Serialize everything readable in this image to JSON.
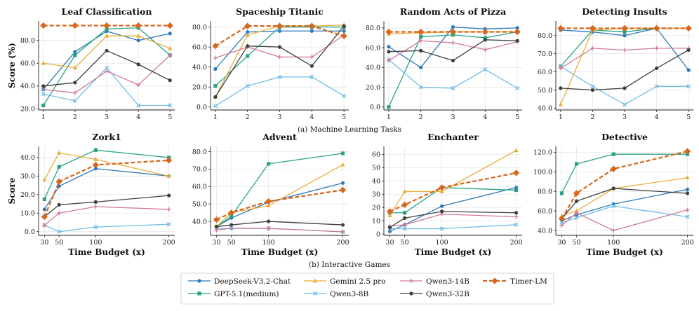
{
  "colors": {
    "DeepSeek-V3.2-Chat": "#2e7ab8",
    "GPT-5.1(medium)": "#27a383",
    "Gemini 2.5 pro": "#e9ae38",
    "Qwen3-8B": "#72bde6",
    "Qwen3-14B": "#d07a9a",
    "Qwen3-32B": "#3f3f3f",
    "Timer-LM": "#d8661c"
  },
  "legend": {
    "items": [
      "DeepSeek-V3.2-Chat",
      "GPT-5.1(medium)",
      "Gemini 2.5 pro",
      "Qwen3-8B",
      "Qwen3-14B",
      "Qwen3-32B",
      "Timer-LM"
    ]
  },
  "captions": {
    "row1": "(a) Machine Learning Tasks",
    "row2": "(b) Interactive Games"
  },
  "chart_data": [
    {
      "type": "line",
      "title": "Leaf Classification",
      "ylabel": "Score (%)",
      "xlabel": "",
      "x": [
        1,
        2,
        3,
        4,
        5
      ],
      "xlim": [
        0.85,
        5.15
      ],
      "ylim": [
        19,
        97
      ],
      "xticks": [
        1,
        2,
        3,
        4,
        5
      ],
      "yticks": [
        20.0,
        40.0,
        60.0,
        80.0
      ],
      "ydec": 1,
      "series": [
        {
          "name": "DeepSeek-V3.2-Chat",
          "values": [
            37,
            70,
            88,
            80,
            86
          ]
        },
        {
          "name": "GPT-5.1(medium)",
          "values": [
            23,
            67,
            90,
            91,
            67
          ]
        },
        {
          "name": "Gemini 2.5 pro",
          "values": [
            60,
            56,
            84,
            84,
            73
          ]
        },
        {
          "name": "Qwen3-8B",
          "values": [
            33,
            27,
            56,
            23,
            23
          ]
        },
        {
          "name": "Qwen3-14B",
          "values": [
            37,
            34,
            53,
            41,
            67
          ]
        },
        {
          "name": "Qwen3-32B",
          "values": [
            40,
            43,
            71,
            59,
            45
          ]
        },
        {
          "name": "Timer-LM",
          "values": [
            93,
            93,
            93,
            93,
            93
          ]
        }
      ]
    },
    {
      "type": "line",
      "title": "Spaceship Titanic",
      "ylabel": "",
      "xlabel": "",
      "x": [
        1,
        2,
        3,
        4,
        5
      ],
      "xlim": [
        0.85,
        5.15
      ],
      "ylim": [
        -3,
        86
      ],
      "xticks": [
        1,
        2,
        3,
        4,
        5
      ],
      "yticks": [
        0.0,
        20.0,
        40.0,
        60.0,
        80.0
      ],
      "ydec": 1,
      "series": [
        {
          "name": "DeepSeek-V3.2-Chat",
          "values": [
            38,
            75,
            76,
            76,
            76
          ]
        },
        {
          "name": "GPT-5.1(medium)",
          "values": [
            21,
            51,
            80,
            80,
            80
          ]
        },
        {
          "name": "Gemini 2.5 pro",
          "values": [
            10,
            72,
            81,
            81,
            82
          ]
        },
        {
          "name": "Qwen3-8B",
          "values": [
            1,
            21,
            30,
            30,
            11
          ]
        },
        {
          "name": "Qwen3-14B",
          "values": [
            49,
            60,
            50,
            50,
            72
          ]
        },
        {
          "name": "Qwen3-32B",
          "values": [
            10,
            61,
            60,
            41,
            81
          ]
        },
        {
          "name": "Timer-LM",
          "values": [
            61,
            81,
            81,
            81,
            71
          ]
        }
      ]
    },
    {
      "type": "line",
      "title": "Random Acts of Pizza",
      "ylabel": "",
      "xlabel": "",
      "x": [
        1,
        2,
        3,
        4,
        5
      ],
      "xlim": [
        0.85,
        5.15
      ],
      "ylim": [
        -3,
        87
      ],
      "xticks": [
        1,
        2,
        3,
        4,
        5
      ],
      "yticks": [
        0.0,
        20.0,
        40.0,
        60.0,
        80.0
      ],
      "ydec": 1,
      "series": [
        {
          "name": "DeepSeek-V3.2-Chat",
          "values": [
            61,
            40,
            81,
            79,
            80
          ]
        },
        {
          "name": "GPT-5.1(medium)",
          "values": [
            0,
            71,
            73,
            70,
            76
          ]
        },
        {
          "name": "Gemini 2.5 pro",
          "values": [
            74,
            75,
            76,
            76,
            76
          ]
        },
        {
          "name": "Qwen3-8B",
          "values": [
            48,
            20,
            19,
            38,
            19
          ]
        },
        {
          "name": "Qwen3-14B",
          "values": [
            47,
            67,
            65,
            58,
            66
          ]
        },
        {
          "name": "Qwen3-32B",
          "values": [
            56,
            57,
            47,
            68,
            67
          ]
        },
        {
          "name": "Timer-LM",
          "values": [
            76,
            76,
            76,
            76,
            76
          ]
        }
      ]
    },
    {
      "type": "line",
      "title": "Detecting Insults",
      "ylabel": "",
      "xlabel": "",
      "x": [
        1,
        2,
        3,
        4,
        5
      ],
      "xlim": [
        0.85,
        5.15
      ],
      "ylim": [
        39,
        88
      ],
      "xticks": [
        1,
        2,
        3,
        4,
        5
      ],
      "yticks": [
        40.0,
        50.0,
        60.0,
        70.0,
        80.0
      ],
      "ydec": 1,
      "series": [
        {
          "name": "DeepSeek-V3.2-Chat",
          "values": [
            83,
            82,
            80,
            84,
            61
          ]
        },
        {
          "name": "GPT-5.1(medium)",
          "values": [
            63,
            83,
            82,
            84,
            84
          ]
        },
        {
          "name": "Gemini 2.5 pro",
          "values": [
            42,
            83,
            84,
            84,
            84
          ]
        },
        {
          "name": "Qwen3-8B",
          "values": [
            63,
            52,
            42,
            52,
            52
          ]
        },
        {
          "name": "Qwen3-14B",
          "values": [
            62,
            73,
            72,
            73,
            73
          ]
        },
        {
          "name": "Qwen3-32B",
          "values": [
            51,
            50,
            51,
            62,
            72
          ]
        },
        {
          "name": "Timer-LM",
          "values": [
            84,
            84,
            84,
            84,
            84
          ]
        }
      ]
    },
    {
      "type": "line",
      "title": "Zork1",
      "ylabel": "Score",
      "xlabel": "Time Budget (x)",
      "x": [
        30,
        50,
        100,
        200
      ],
      "xlim": [
        22,
        208
      ],
      "ylim": [
        -2,
        46
      ],
      "xticks": [
        30,
        50,
        100,
        200
      ],
      "yticks": [
        0.0,
        10.0,
        20.0,
        30.0,
        40.0
      ],
      "ydec": 1,
      "series": [
        {
          "name": "DeepSeek-V3.2-Chat",
          "values": [
            12,
            24.5,
            34,
            30
          ]
        },
        {
          "name": "GPT-5.1(medium)",
          "values": [
            17.5,
            35,
            44,
            40
          ]
        },
        {
          "name": "Gemini 2.5 pro",
          "values": [
            28,
            42.5,
            39,
            30
          ]
        },
        {
          "name": "Qwen3-8B",
          "values": [
            3.5,
            0,
            2.5,
            4
          ]
        },
        {
          "name": "Qwen3-14B",
          "values": [
            3.5,
            10,
            13.5,
            12
          ]
        },
        {
          "name": "Qwen3-32B",
          "values": [
            8,
            14.5,
            16,
            19.5
          ]
        },
        {
          "name": "Timer-LM",
          "values": [
            8,
            27,
            36,
            38.5
          ]
        }
      ]
    },
    {
      "type": "line",
      "title": "Advent",
      "ylabel": "",
      "xlabel": "Time Budget (x)",
      "x": [
        30,
        50,
        100,
        200
      ],
      "xlim": [
        22,
        208
      ],
      "ylim": [
        32,
        83
      ],
      "xticks": [
        30,
        50,
        100,
        200
      ],
      "yticks": [
        40.0,
        50.0,
        60.0,
        70.0,
        80.0
      ],
      "ydec": 1,
      "series": [
        {
          "name": "DeepSeek-V3.2-Chat",
          "values": [
            37,
            42,
            51,
            62
          ]
        },
        {
          "name": "GPT-5.1(medium)",
          "values": [
            37,
            43,
            73,
            79
          ]
        },
        {
          "name": "Gemini 2.5 pro",
          "values": [
            37,
            45,
            49,
            72.5
          ]
        },
        {
          "name": "Qwen3-8B",
          "values": [
            36,
            36,
            36,
            34
          ]
        },
        {
          "name": "Qwen3-14B",
          "values": [
            35,
            36,
            36,
            34
          ]
        },
        {
          "name": "Qwen3-32B",
          "values": [
            37,
            38,
            40,
            38
          ]
        },
        {
          "name": "Timer-LM",
          "values": [
            41,
            45,
            51.5,
            58
          ]
        }
      ]
    },
    {
      "type": "line",
      "title": "Enchanter",
      "ylabel": "",
      "xlabel": "Time Budget (x)",
      "x": [
        30,
        50,
        100,
        200
      ],
      "xlim": [
        22,
        208
      ],
      "ylim": [
        -1,
        66
      ],
      "xticks": [
        30,
        50,
        100,
        200
      ],
      "yticks": [
        0,
        10,
        20,
        30,
        40,
        50,
        60
      ],
      "ydec": 0,
      "series": [
        {
          "name": "DeepSeek-V3.2-Chat",
          "values": [
            2,
            7,
            21,
            35
          ]
        },
        {
          "name": "GPT-5.1(medium)",
          "values": [
            16,
            16,
            35,
            33
          ]
        },
        {
          "name": "Gemini 2.5 pro",
          "values": [
            14,
            32,
            32,
            63
          ]
        },
        {
          "name": "Qwen3-8B",
          "values": [
            4,
            4,
            4,
            7
          ]
        },
        {
          "name": "Qwen3-14B",
          "values": [
            6,
            7,
            15,
            13
          ]
        },
        {
          "name": "Qwen3-32B",
          "values": [
            5,
            12,
            17,
            16
          ]
        },
        {
          "name": "Timer-LM",
          "values": [
            17,
            22,
            35,
            46
          ]
        }
      ]
    },
    {
      "type": "line",
      "title": "Detective",
      "ylabel": "",
      "xlabel": "Time Budget (x)",
      "x": [
        30,
        50,
        100,
        200
      ],
      "xlim": [
        22,
        208
      ],
      "ylim": [
        35,
        126
      ],
      "xticks": [
        30,
        50,
        100,
        200
      ],
      "yticks": [
        40.0,
        60.0,
        80.0,
        100.0,
        120.0
      ],
      "ydec": 1,
      "series": [
        {
          "name": "DeepSeek-V3.2-Chat",
          "values": [
            50,
            56,
            67,
            82
          ]
        },
        {
          "name": "GPT-5.1(medium)",
          "values": [
            78,
            108,
            118,
            118
          ]
        },
        {
          "name": "Gemini 2.5 pro",
          "values": [
            55,
            60,
            83,
            94
          ]
        },
        {
          "name": "Qwen3-8B",
          "values": [
            48,
            53,
            65,
            54
          ]
        },
        {
          "name": "Qwen3-14B",
          "values": [
            45,
            58,
            40,
            61
          ]
        },
        {
          "name": "Qwen3-32B",
          "values": [
            52,
            70,
            83,
            78
          ]
        },
        {
          "name": "Timer-LM",
          "values": [
            52,
            78,
            103,
            121
          ]
        }
      ]
    }
  ]
}
